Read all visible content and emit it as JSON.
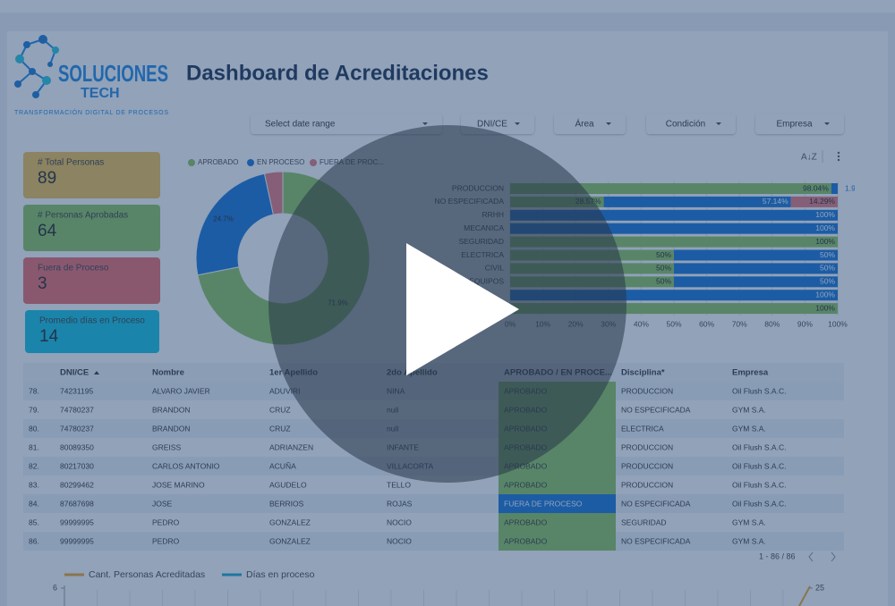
{
  "logo": {
    "name": "SOLUCIONES",
    "sub": "TECH",
    "tagline": "TRANSFORMACIÓN DIGITAL DE PROCESOS"
  },
  "title": "Dashboard de Acreditaciones",
  "filters": [
    "Select date range",
    "DNI/CE",
    "Área",
    "Condición",
    "Empresa"
  ],
  "kpis": [
    {
      "label": "# Total Personas",
      "value": 89,
      "color": "#f2c14e"
    },
    {
      "label": "# Personas Aprobadas",
      "value": 64,
      "color": "#8dc45a"
    },
    {
      "label": "Fuera de Proceso",
      "value": 3,
      "color": "#ee6b6b"
    },
    {
      "label": "Promedio días en Proceso",
      "value": 14,
      "color": "#12c2e0"
    }
  ],
  "donut": {
    "type": "pie",
    "series": [
      {
        "name": "APROBADO",
        "color": "#8dc45a",
        "value": 71.9,
        "value_label": "71.9%"
      },
      {
        "name": "EN PROCESO",
        "color": "#1473d6",
        "value": 24.7,
        "value_label": "24.7%"
      },
      {
        "name": "FUERA DE PROC...",
        "color": "#e8777b",
        "value": 3.4,
        "value_label": null
      }
    ]
  },
  "bars": {
    "type": "bar",
    "orientation": "horizontal",
    "stacked": true,
    "categories": [
      "PRODUCCION",
      "NO ESPECIFICADA",
      "RRHH",
      "MECANICA",
      "SEGURIDAD",
      "ELECTRICA",
      "CIVIL",
      "EQUIPOS",
      null,
      null
    ],
    "series": [
      {
        "name": "APROBADO",
        "color": "#8dc45a",
        "values": [
          98.04,
          28.57,
          0,
          0,
          100,
          50,
          50,
          50,
          0,
          100
        ],
        "value_labels": [
          "98.04%",
          "28.57%",
          null,
          null,
          "100%",
          "50%",
          "50%",
          "50%",
          null,
          "100%"
        ]
      },
      {
        "name": "EN PROCESO",
        "color": "#1473d6",
        "values": [
          1.96,
          57.14,
          100,
          100,
          0,
          50,
          50,
          50,
          100,
          0
        ],
        "value_labels": [
          "1.96%",
          "57.14%",
          "100%",
          "100%",
          null,
          "50%",
          "50%",
          "50%",
          "100%",
          null
        ]
      },
      {
        "name": "FUERA DE PROCESO",
        "color": "#e8777b",
        "values": [
          0,
          14.29,
          0,
          0,
          0,
          0,
          0,
          0,
          0,
          0
        ],
        "value_labels": [
          null,
          "14.29%",
          null,
          null,
          null,
          null,
          null,
          null,
          null,
          null
        ]
      }
    ],
    "xlim": [
      0,
      100
    ],
    "xticks": [
      {
        "value": 0,
        "label": "0%"
      },
      {
        "value": 10,
        "label": "10%"
      },
      {
        "value": 20,
        "label": "20%"
      },
      {
        "value": 30,
        "label": "30%"
      },
      {
        "value": 40,
        "label": "40%"
      },
      {
        "value": 50,
        "label": "50%"
      },
      {
        "value": 60,
        "label": "60%"
      },
      {
        "value": 70,
        "label": "70%"
      },
      {
        "value": 80,
        "label": "80%"
      },
      {
        "value": 90,
        "label": "90%"
      },
      {
        "value": 100,
        "label": "100%"
      }
    ],
    "grid": true
  },
  "table": {
    "headers": [
      "DNI/CE",
      "Nombre",
      "1er Apellido",
      "2do Apellido",
      "APROBADO / EN PROCE...",
      "Disciplina*",
      "Empresa"
    ],
    "status_colors": {
      "APROBADO": "#8dc45a",
      "FUERA DE PROCESO": "#1473d6"
    },
    "rows": [
      [
        "78.",
        "74231195",
        "ALVARO JAVIER",
        "ADUVIRI",
        "NINA",
        "APROBADO",
        "PRODUCCION",
        "Oil Flush S.A.C."
      ],
      [
        "79.",
        "74780237",
        "BRANDON",
        "CRUZ",
        "null",
        "APROBADO",
        "NO ESPECIFICADA",
        "GYM S.A."
      ],
      [
        "80.",
        "74780237",
        "BRANDON",
        "CRUZ",
        "null",
        "APROBADO",
        "ELECTRICA",
        "GYM S.A."
      ],
      [
        "81.",
        "80089350",
        "GREISS",
        "ADRIANZEN",
        "INFANTE",
        "APROBADO",
        "PRODUCCION",
        "Oil Flush S.A.C."
      ],
      [
        "82.",
        "80217030",
        "CARLOS ANTONIO",
        "ACUÑA",
        "VILLACORTA",
        "APROBADO",
        "PRODUCCION",
        "Oil Flush S.A.C."
      ],
      [
        "83.",
        "80299462",
        "JOSE MARINO",
        "AGUDELO",
        "TELLO",
        "APROBADO",
        "PRODUCCION",
        "Oil Flush S.A.C."
      ],
      [
        "84.",
        "87687698",
        "JOSE",
        "BERRIOS",
        "ROJAS",
        "FUERA DE PROCESO",
        "NO ESPECIFICADA",
        "Oil Flush S.A.C."
      ],
      [
        "85.",
        "99999995",
        "PEDRO",
        "GONZALEZ",
        "NOCIO",
        "APROBADO",
        "SEGURIDAD",
        "GYM S.A."
      ],
      [
        "86.",
        "99999995",
        "PEDRO",
        "GONZALEZ",
        "NOCIO",
        "APROBADO",
        "NO ESPECIFICADA",
        "GYM S.A."
      ]
    ],
    "pagination": "1 - 86 / 86"
  },
  "trend": {
    "type": "line",
    "series": [
      {
        "name": "Cant. Personas Acreditadas",
        "color": "#f0a528"
      },
      {
        "name": "Días en proceso",
        "color": "#1ba6cf"
      }
    ],
    "yticks": [
      6
    ],
    "y2ticks": [
      25
    ]
  }
}
